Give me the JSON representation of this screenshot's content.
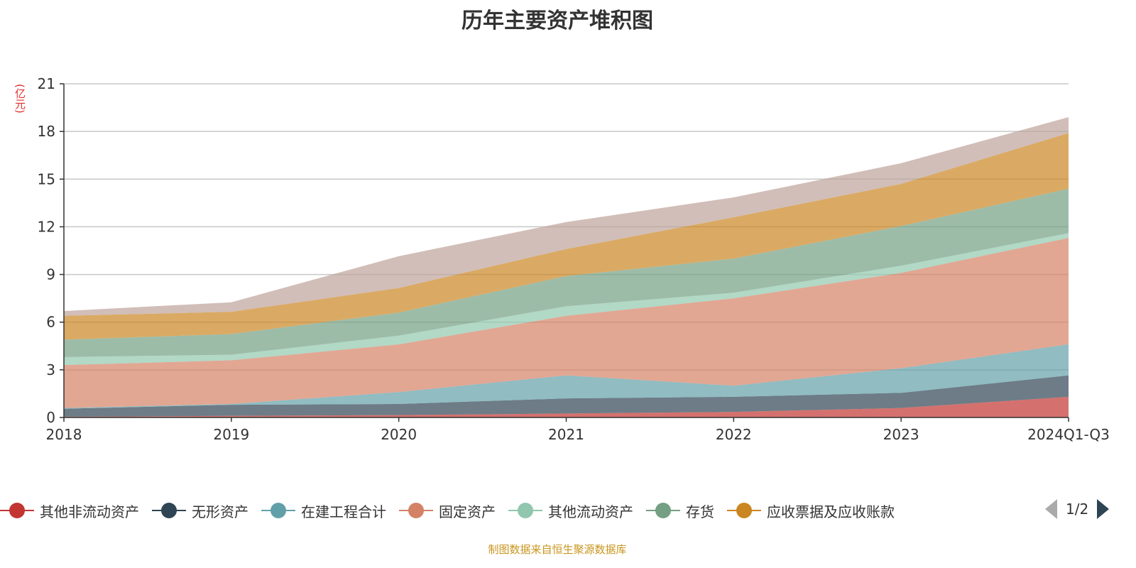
{
  "chart_data": {
    "type": "area",
    "stacked": true,
    "title": "历年主要资产堆积图",
    "ylabel": "(亿元)",
    "xlabel": "",
    "categories": [
      "2018",
      "2019",
      "2020",
      "2021",
      "2022",
      "2023",
      "2024Q1-Q3"
    ],
    "ylim": [
      0,
      21
    ],
    "yticks": [
      0,
      3,
      6,
      9,
      12,
      15,
      18,
      21
    ],
    "grid": true,
    "legend_position": "bottom",
    "series": [
      {
        "name": "其他非流动资产",
        "color": "#c23531",
        "values": [
          0.05,
          0.1,
          0.15,
          0.25,
          0.35,
          0.6,
          1.3
        ]
      },
      {
        "name": "无形资产",
        "color": "#2f4554",
        "values": [
          0.5,
          0.7,
          0.7,
          0.95,
          0.95,
          0.95,
          1.35
        ]
      },
      {
        "name": "在建工程合计",
        "color": "#61a0a8",
        "values": [
          0.05,
          0.05,
          0.75,
          1.45,
          0.7,
          1.55,
          1.95
        ]
      },
      {
        "name": "固定资产",
        "color": "#d48265",
        "values": [
          2.7,
          2.75,
          3.0,
          3.75,
          5.5,
          6.0,
          6.7
        ]
      },
      {
        "name": "其他流动资产",
        "color": "#91c7ae",
        "values": [
          0.5,
          0.35,
          0.55,
          0.6,
          0.35,
          0.45,
          0.3
        ]
      },
      {
        "name": "存货",
        "color": "#749f83",
        "values": [
          1.1,
          1.3,
          1.45,
          1.9,
          2.15,
          2.5,
          2.8
        ]
      },
      {
        "name": "应收票据及应收账款",
        "color": "#ca8622",
        "values": [
          1.5,
          1.4,
          1.55,
          1.7,
          2.6,
          2.65,
          3.5
        ]
      },
      {
        "color": "#bda29a",
        "values": [
          0.3,
          0.6,
          2.0,
          1.7,
          1.25,
          1.3,
          1.0
        ]
      }
    ]
  },
  "legend": {
    "page": "1/2"
  },
  "source": "制图数据来自恒生聚源数据库"
}
